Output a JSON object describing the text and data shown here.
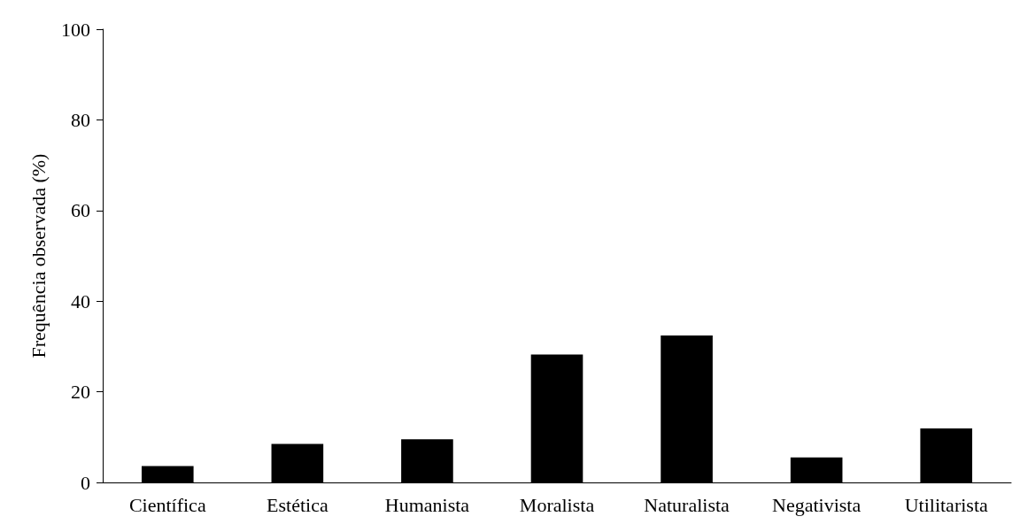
{
  "chart_data": {
    "type": "bar",
    "ylabel": "Frequência observada (%)",
    "categories": [
      "Científica",
      "Estética",
      "Humanista",
      "Moralista",
      "Naturalista",
      "Negativista",
      "Utilitarista"
    ],
    "values": [
      3.6,
      8.5,
      9.5,
      28.2,
      32.4,
      5.5,
      11.9
    ],
    "color": "#000000",
    "ylim": [
      0,
      100
    ],
    "yticks": [
      0,
      20,
      40,
      60,
      80,
      100
    ],
    "grid": false
  }
}
